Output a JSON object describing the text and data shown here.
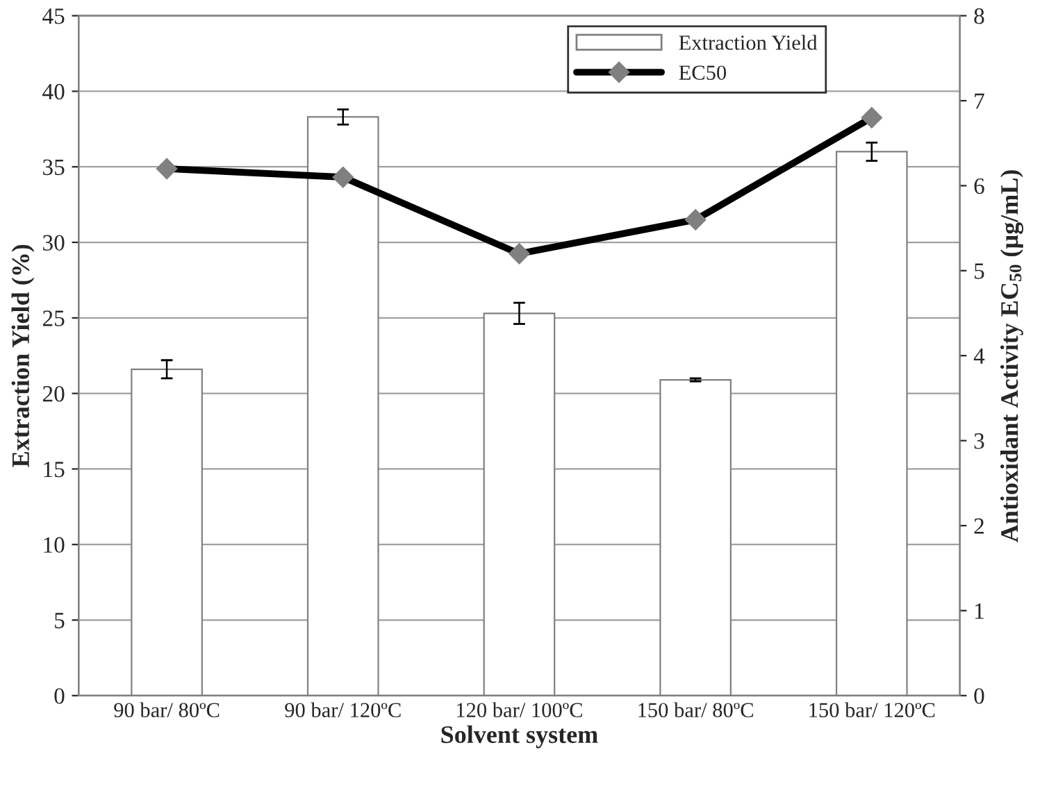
{
  "chart_data": {
    "type": "bar",
    "xlabel": "Solvent system",
    "ylabel": "Extraction Yield (%)",
    "y2label": "Antioxidant Activity EC$_{50}$ (µg/mL)",
    "categories": [
      "90 bar/ 80ºC",
      "90 bar/ 120ºC",
      "120 bar/ 100ºC",
      "150 bar/ 80ºC",
      "150 bar/ 120ºC"
    ],
    "series": [
      {
        "name": "Extraction Yield",
        "color": "#ffffff",
        "values": [
          21.6,
          38.3,
          25.3,
          20.9,
          36.0
        ],
        "errors": [
          0.6,
          0.5,
          0.7,
          0.1,
          0.6
        ]
      },
      {
        "name": "EC50",
        "type": "line",
        "axis": "y2",
        "color": "#000000",
        "marker": "diamond",
        "values": [
          6.2,
          6.1,
          5.2,
          5.6,
          6.8
        ]
      }
    ],
    "ylim": [
      0,
      45
    ],
    "yticks": [
      0,
      5,
      10,
      15,
      20,
      25,
      30,
      35,
      40,
      45
    ],
    "y2lim": [
      0,
      8
    ],
    "y2ticks": [
      0,
      1,
      2,
      3,
      4,
      5,
      6,
      7,
      8
    ],
    "grid": "y",
    "legend": "top right"
  }
}
